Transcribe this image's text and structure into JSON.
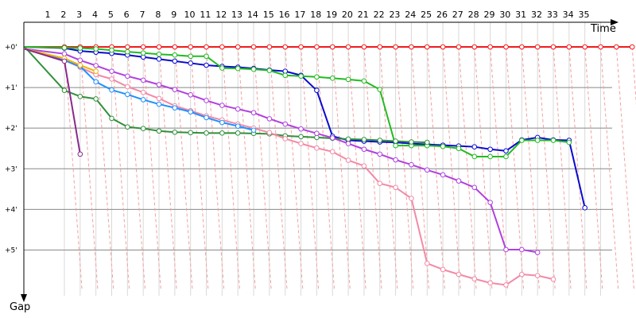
{
  "chart_data": {
    "type": "line",
    "xlabel": "Time",
    "ylabel": "Gap",
    "x_ticks": [
      "1",
      "2",
      "3",
      "4",
      "5",
      "6",
      "7",
      "8",
      "9",
      "10",
      "11",
      "12",
      "13",
      "14",
      "15",
      "16",
      "17",
      "18",
      "19",
      "20",
      "21",
      "22",
      "23",
      "24",
      "25",
      "26",
      "27",
      "28",
      "29",
      "30",
      "31",
      "32",
      "33",
      "34",
      "35"
    ],
    "y_ticks": [
      "+0'",
      "+1'",
      "+2'",
      "+3'",
      "+4'",
      "+5'"
    ],
    "y_tick_values": [
      0,
      1,
      2,
      3,
      4,
      5
    ],
    "xlim": [
      0,
      37.3
    ],
    "ylim": [
      0,
      5.95
    ],
    "grid": true,
    "colors": {
      "grid": "#888888",
      "minor_grid": "#d9d9d9",
      "diagonal": "#f4a0a0"
    },
    "series": [
      {
        "color": "#ee1c1c",
        "y": [
          0,
          0,
          0,
          0,
          0,
          0,
          0,
          0,
          0,
          0,
          0,
          0,
          0,
          0,
          0,
          0,
          0,
          0,
          0,
          0,
          0,
          0,
          0,
          0,
          0,
          0,
          0,
          0,
          0,
          0,
          0,
          0,
          0,
          0,
          0,
          0,
          0,
          0
        ]
      },
      {
        "color": "#0a0ad0",
        "y": [
          0,
          0.03,
          0.1,
          0.13,
          0.16,
          0.2,
          0.25,
          0.3,
          0.35,
          0.4,
          0.45,
          0.48,
          0.5,
          0.53,
          0.57,
          0.6,
          0.7,
          1.07,
          2.2,
          2.3,
          2.32,
          2.34,
          2.35,
          2.38,
          2.4,
          2.42,
          2.44,
          2.46,
          2.52,
          2.56,
          2.29,
          2.23,
          2.29,
          2.3,
          3.96
        ]
      },
      {
        "color": "#22bb22",
        "y": [
          0,
          0.02,
          0.03,
          0.05,
          0.08,
          0.12,
          0.15,
          0.18,
          0.2,
          0.23,
          0.23,
          0.52,
          0.53,
          0.55,
          0.58,
          0.7,
          0.72,
          0.74,
          0.77,
          0.8,
          0.84,
          1.05,
          2.43,
          2.43,
          2.43,
          2.45,
          2.5,
          2.7,
          2.7,
          2.7,
          2.3,
          2.3,
          2.3,
          2.35
        ]
      },
      {
        "color": "#30903a",
        "y": [
          0,
          1.07,
          1.22,
          1.28,
          1.76,
          1.97,
          2.01,
          2.07,
          2.1,
          2.11,
          2.12,
          2.12,
          2.12,
          2.13,
          2.14,
          2.19,
          2.21,
          2.23,
          2.25,
          2.27,
          2.28,
          2.3,
          2.32,
          2.34,
          2.35
        ]
      },
      {
        "color": "#b040e0",
        "y": [
          0.05,
          0.17,
          0.33,
          0.46,
          0.6,
          0.72,
          0.82,
          0.93,
          1.05,
          1.18,
          1.32,
          1.44,
          1.53,
          1.62,
          1.77,
          1.9,
          2.02,
          2.13,
          2.24,
          2.38,
          2.52,
          2.64,
          2.78,
          2.9,
          3.03,
          3.15,
          3.3,
          3.46,
          3.83,
          4.99,
          4.99,
          5.06
        ]
      },
      {
        "color": "#f28aa6",
        "y": [
          0.05,
          0.33,
          0.5,
          0.68,
          0.79,
          0.98,
          1.12,
          1.27,
          1.45,
          1.57,
          1.7,
          1.8,
          1.9,
          2.0,
          2.11,
          2.26,
          2.38,
          2.49,
          2.58,
          2.79,
          2.93,
          3.36,
          3.46,
          3.73,
          5.33,
          5.48,
          5.6,
          5.71,
          5.81,
          5.86,
          5.6,
          5.63,
          5.72
        ]
      },
      {
        "color": "#1e90ff",
        "y": [
          0.05,
          0.33,
          0.48,
          0.86,
          1.06,
          1.17,
          1.3,
          1.41,
          1.5,
          1.6,
          1.74,
          1.86,
          1.95,
          2.05
        ]
      },
      {
        "color": "#f0b400",
        "y": [
          0.05,
          0.28,
          0.45,
          0.6
        ]
      },
      {
        "color": "#8a2a8a",
        "y": [
          0.05,
          0.35,
          2.64
        ]
      }
    ]
  }
}
